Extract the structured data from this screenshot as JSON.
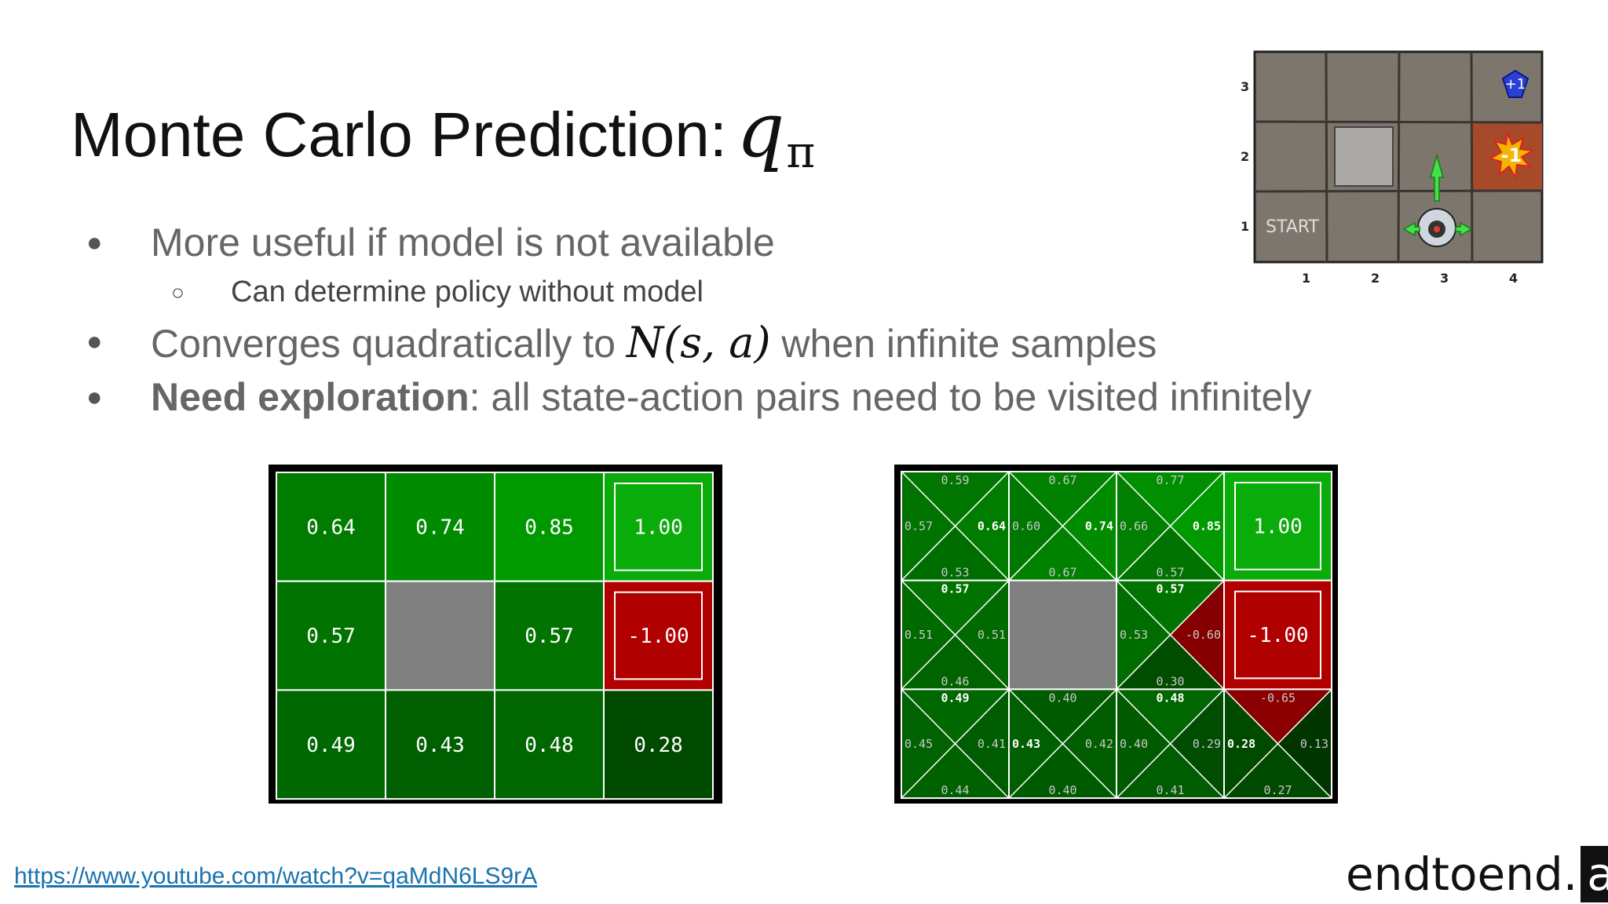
{
  "slide": {
    "title": "Monte Carlo Prediction:",
    "title_symbol": "q",
    "title_symbol_sub": "π",
    "bullets": [
      {
        "text": "More useful if model is not available"
      },
      {
        "sub": "Can determine policy without model"
      },
      {
        "before": "Converges quadratically to ",
        "math": "N(s, a)",
        "after": " when infinite samples"
      },
      {
        "bold": "Need exploration",
        "after": ": all state-action pairs need to be visited infinitely"
      }
    ],
    "bullet_glyph": "●",
    "sub_bullet_glyph": "○",
    "link": "https://www.youtube.com/watch?v=qaMdN6LS9rA",
    "brand": {
      "text": "endtoend.",
      "highlight": "ai"
    }
  },
  "gridworld_illustration": {
    "row_labels": [
      "3",
      "2",
      "1"
    ],
    "col_labels": [
      "1",
      "2",
      "3",
      "4"
    ],
    "start_label": "START",
    "reward_pos": "+1",
    "reward_neg": "-1"
  },
  "value_grid": {
    "cells": [
      [
        "0.64",
        "0.74",
        "0.85",
        "1.00"
      ],
      [
        "0.57",
        "",
        "0.57",
        "-1.00"
      ],
      [
        "0.49",
        "0.43",
        "0.48",
        "0.28"
      ]
    ]
  },
  "q_grid": {
    "cells": [
      [
        {
          "n": "0.59",
          "w": "0.57",
          "e": "0.64",
          "s": "0.53"
        },
        {
          "n": "0.67",
          "w": "0.60",
          "e": "0.74",
          "s": "0.67"
        },
        {
          "n": "0.77",
          "w": "0.66",
          "e": "0.85",
          "s": "0.57"
        },
        {
          "terminal": "1.00"
        }
      ],
      [
        {
          "n": "0.57",
          "w": "0.51",
          "e": "0.51",
          "s": "0.46"
        },
        {
          "wall": true
        },
        {
          "n": "0.57",
          "w": "0.53",
          "e": "-0.60",
          "s": "0.30"
        },
        {
          "terminal": "-1.00"
        }
      ],
      [
        {
          "n": "0.49",
          "w": "0.45",
          "e": "0.41",
          "s": "0.44"
        },
        {
          "n": "0.40",
          "w": "0.43",
          "e": "0.42",
          "s": "0.40"
        },
        {
          "n": "0.48",
          "w": "0.40",
          "e": "0.29",
          "s": "0.41"
        },
        {
          "n": "-0.65",
          "w": "0.28",
          "e": "0.13",
          "s": "0.27"
        }
      ]
    ]
  },
  "colors": {
    "cell_border": "#ffffff",
    "frame": "#000000",
    "wall": "#808080",
    "positive_terminal": "#0aac0a",
    "negative_terminal": "#b10000"
  }
}
